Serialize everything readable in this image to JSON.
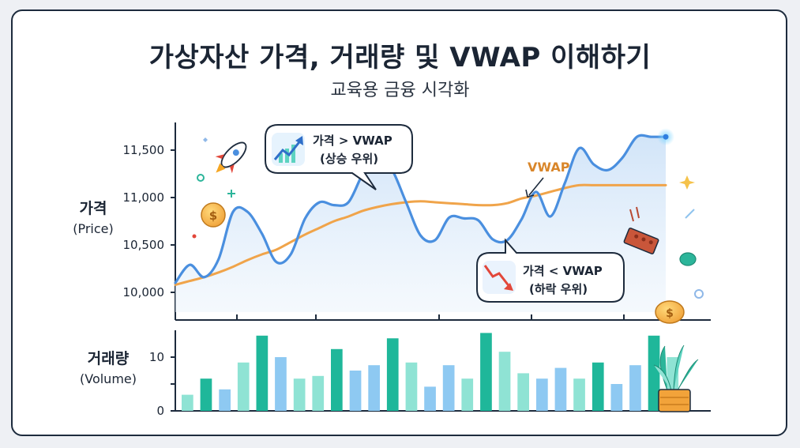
{
  "header": {
    "title": "가상자산 가격, 거래량 및 VWAP 이해하기",
    "subtitle": "교육용 금융 시각화"
  },
  "price_panel": {
    "ylabel_main": "가격",
    "ylabel_sub": "(Price)",
    "vwap_label": "VWAP",
    "callout_up": {
      "line1": "가격 > VWAP",
      "line2": "(상승 우위)"
    },
    "callout_down": {
      "line1": "가격 < VWAP",
      "line2": "(하락 우위)"
    }
  },
  "volume_panel": {
    "ylabel_main": "거래량",
    "ylabel_sub": "(Volume)"
  },
  "colors": {
    "price": "#4a8fdf",
    "vwap": "#f0a44a",
    "bar_dark": "#1fb79a",
    "bar_mid": "#5dd3c0",
    "bar_light": "#8fe3d4",
    "bar_blue": "#8ec9f2",
    "text": "#1b2534"
  },
  "chart_data": [
    {
      "type": "line",
      "ylabel": "가격 (Price)",
      "ylim": [
        9950,
        11750
      ],
      "yticks": [
        10000,
        10500,
        11000,
        11500
      ],
      "ytick_labels": [
        "10,000",
        "10,500",
        "11,000",
        "11,500"
      ],
      "x": [
        0,
        0.5,
        1,
        1.5,
        2,
        2.5,
        3,
        3.5,
        4,
        4.5,
        5,
        5.5,
        6,
        6.5,
        7,
        7.5,
        8,
        8.5,
        9,
        9.5,
        10,
        10.5,
        11,
        11.5,
        12,
        12.5,
        13,
        13.5,
        14,
        14.5,
        15,
        15.5,
        16,
        16.5,
        17,
        17.5,
        18
      ],
      "series": [
        {
          "name": "",
          "values": [
            10100,
            10290,
            10160,
            10350,
            10850,
            10850,
            10620,
            10320,
            10400,
            10780,
            10950,
            10920,
            10950,
            11250,
            11450,
            11300,
            10950,
            10600,
            10550,
            10790,
            10780,
            10760,
            10560,
            10550,
            10770,
            11060,
            10800,
            11150,
            11520,
            11350,
            11290,
            11420,
            11640,
            11640,
            11640,
            11640,
            11640
          ]
        },
        {
          "name": "VWAP",
          "values": [
            10080,
            10120,
            10160,
            10210,
            10270,
            10340,
            10400,
            10450,
            10530,
            10610,
            10680,
            10750,
            10800,
            10860,
            10900,
            10930,
            10950,
            10960,
            10950,
            10940,
            10930,
            10920,
            10920,
            10940,
            10990,
            11020,
            11060,
            11100,
            11130,
            11130,
            11130,
            11130,
            11130,
            11130,
            11130,
            11130,
            11130
          ]
        }
      ],
      "annotations": [
        "가격 > VWAP (상승 우위)",
        "VWAP",
        "가격 < VWAP (하락 우위)"
      ]
    },
    {
      "type": "bar",
      "ylabel": "거래량 (Volume)",
      "ylim": [
        0,
        15
      ],
      "yticks": [
        0,
        5,
        10
      ],
      "ytick_labels": [
        "0",
        "",
        "10"
      ],
      "values": [
        3,
        6,
        4,
        9,
        14,
        10,
        6,
        6.5,
        11.5,
        7.5,
        8.5,
        13.5,
        9,
        4.5,
        8.5,
        6,
        14.5,
        11,
        7,
        6,
        8,
        6,
        9,
        5,
        8.5,
        14,
        10
      ]
    }
  ]
}
